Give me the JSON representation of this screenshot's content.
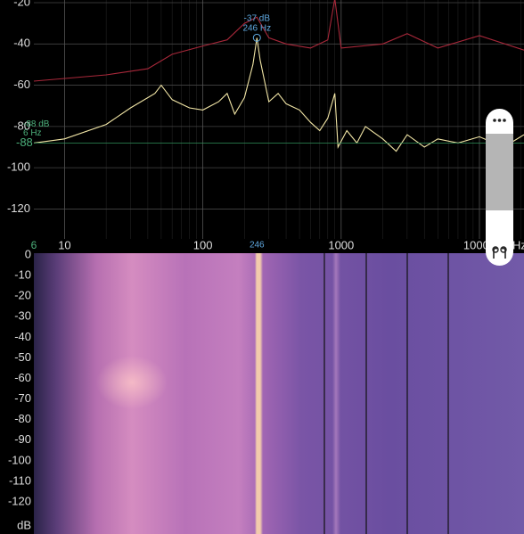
{
  "spectrum": {
    "ylim": [
      -18.7,
      -134.5
    ],
    "yticks": [
      -20,
      -40,
      -60,
      -80,
      -100,
      -120
    ],
    "xlim": [
      6,
      21000
    ],
    "xticks": [
      10,
      100,
      1000,
      10000
    ],
    "x_unit": "Hz",
    "log_x": true,
    "start_label": "6",
    "peak": {
      "hz": 246,
      "level_label": "-37 dB",
      "freq_label": "246 Hz",
      "x_label": "246"
    },
    "cursor": {
      "db": -88,
      "y_label": "-88",
      "level_label": "-88 dB",
      "freq_label": "6 Hz"
    },
    "red_curve": {
      "color": "#a8283a",
      "hz": [
        6,
        20,
        40,
        60,
        100,
        150,
        200,
        246,
        300,
        400,
        600,
        800,
        900,
        1000,
        2000,
        3000,
        5000,
        10000,
        21000
      ],
      "db": [
        -58,
        -55,
        -52,
        -45,
        -41,
        -38,
        -30,
        -27,
        -37,
        -40,
        -42,
        -38,
        -18,
        -42,
        -40,
        -35,
        -42,
        -36,
        -43
      ]
    },
    "yellow_curve": {
      "color": "#f2e6a6",
      "hz": [
        6,
        10,
        20,
        30,
        45,
        50,
        60,
        80,
        100,
        130,
        150,
        170,
        200,
        230,
        246,
        260,
        300,
        350,
        400,
        500,
        600,
        700,
        800,
        900,
        950,
        1100,
        1300,
        1500,
        2000,
        2500,
        3000,
        4000,
        5000,
        7000,
        10000,
        15000,
        21000
      ],
      "db": [
        -88,
        -86,
        -79,
        -71,
        -64,
        -60,
        -67,
        -71,
        -72,
        -68,
        -64,
        -74,
        -66,
        -50,
        -37,
        -48,
        -68,
        -64,
        -69,
        -72,
        -78,
        -82,
        -76,
        -64,
        -90,
        -82,
        -88,
        -80,
        -86,
        -92,
        -84,
        -90,
        -86,
        -88,
        -85,
        -90,
        -84
      ]
    }
  },
  "spectrogram": {
    "ylim": [
      0,
      -120
    ],
    "yticks": [
      0,
      -10,
      -20,
      -30,
      -40,
      -50,
      -60,
      -70,
      -80,
      -90,
      -100,
      -110,
      -120
    ],
    "unit_label": "dB"
  }
}
